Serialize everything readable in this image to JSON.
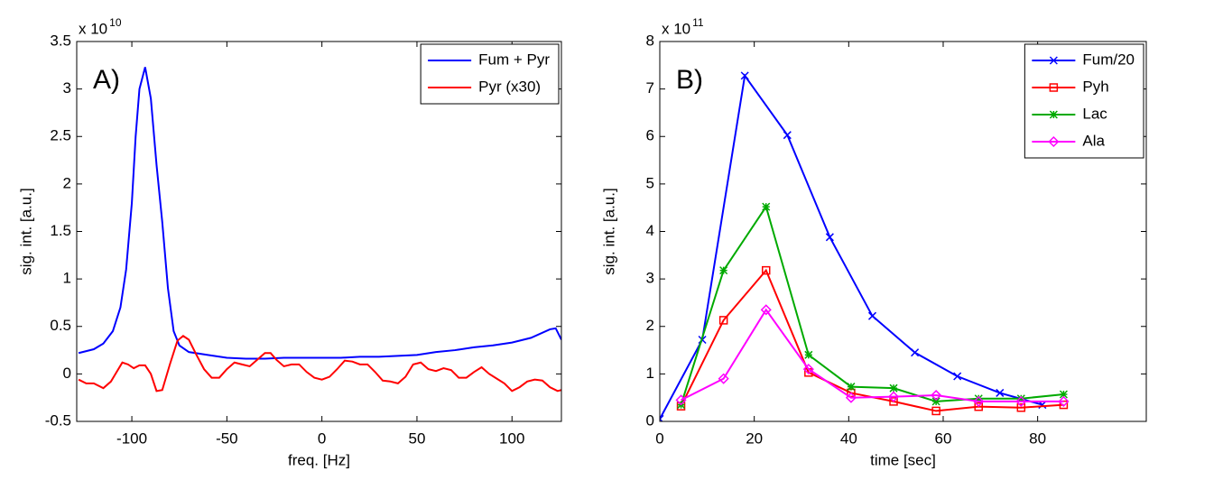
{
  "chart_data": [
    {
      "type": "line",
      "panel_label": "A)",
      "x_label": "freq. [Hz]",
      "y_label": "sig. int. [a.u.]",
      "y_scale_label": "x 10",
      "y_scale_exponent": "10",
      "xlim": [
        -129,
        126
      ],
      "ylim": [
        -0.5,
        3.5
      ],
      "xticks": [
        -100,
        -50,
        0,
        50,
        100
      ],
      "yticks": [
        -0.5,
        0,
        0.5,
        1,
        1.5,
        2,
        2.5,
        3,
        3.5
      ],
      "legend": "upper right",
      "series": [
        {
          "name": "Fum + Pyr",
          "color": "#0000ff",
          "x": [
            -128,
            -120,
            -115,
            -110,
            -106,
            -103,
            -100,
            -98,
            -96,
            -93,
            -90,
            -87,
            -84,
            -81,
            -78,
            -75,
            -70,
            -60,
            -50,
            -40,
            -30,
            -20,
            -10,
            0,
            10,
            20,
            30,
            40,
            50,
            60,
            70,
            80,
            90,
            100,
            110,
            120,
            123,
            126
          ],
          "values": [
            0.22,
            0.26,
            0.32,
            0.45,
            0.7,
            1.1,
            1.8,
            2.5,
            3.0,
            3.23,
            2.9,
            2.2,
            1.6,
            0.9,
            0.45,
            0.3,
            0.23,
            0.2,
            0.17,
            0.16,
            0.16,
            0.17,
            0.17,
            0.17,
            0.17,
            0.18,
            0.18,
            0.19,
            0.2,
            0.23,
            0.25,
            0.28,
            0.3,
            0.33,
            0.38,
            0.47,
            0.48,
            0.36
          ]
        },
        {
          "name": "Pyr (x30)",
          "color": "#ff0000",
          "x": [
            -128,
            -124,
            -120,
            -115,
            -111,
            -105,
            -102,
            -99,
            -96,
            -93,
            -90,
            -87,
            -84,
            -80,
            -76,
            -73,
            -70,
            -66,
            -62,
            -58,
            -54,
            -50,
            -46,
            -42,
            -38,
            -34,
            -30,
            -27,
            -24,
            -20,
            -16,
            -12,
            -8,
            -4,
            0,
            4,
            8,
            12,
            16,
            20,
            24,
            28,
            32,
            36,
            40,
            44,
            48,
            52,
            56,
            60,
            64,
            68,
            72,
            76,
            80,
            84,
            88,
            92,
            96,
            100,
            104,
            108,
            112,
            116,
            120,
            124,
            126
          ],
          "values": [
            -0.06,
            -0.1,
            -0.1,
            -0.15,
            -0.08,
            0.12,
            0.1,
            0.06,
            0.09,
            0.09,
            0.0,
            -0.18,
            -0.17,
            0.1,
            0.35,
            0.4,
            0.36,
            0.2,
            0.05,
            -0.04,
            -0.04,
            0.05,
            0.12,
            0.1,
            0.08,
            0.15,
            0.22,
            0.22,
            0.15,
            0.08,
            0.1,
            0.1,
            0.02,
            -0.04,
            -0.06,
            -0.03,
            0.05,
            0.14,
            0.13,
            0.1,
            0.1,
            0.02,
            -0.07,
            -0.08,
            -0.1,
            -0.03,
            0.1,
            0.12,
            0.05,
            0.03,
            0.06,
            0.04,
            -0.04,
            -0.04,
            0.02,
            0.07,
            0.0,
            -0.05,
            -0.1,
            -0.18,
            -0.14,
            -0.08,
            -0.06,
            -0.07,
            -0.14,
            -0.18,
            -0.17
          ]
        }
      ]
    },
    {
      "type": "line",
      "panel_label": "B)",
      "x_label": "time [sec]",
      "y_label": "sig. int. [a.u.]",
      "y_scale_label": "x 10",
      "y_scale_exponent": "11",
      "xlim": [
        0,
        103
      ],
      "ylim": [
        0,
        8
      ],
      "xticks": [
        0,
        20,
        40,
        60,
        80
      ],
      "yticks": [
        0,
        1,
        2,
        3,
        4,
        5,
        6,
        7,
        8
      ],
      "legend": "upper right",
      "series": [
        {
          "name": "Fum/20",
          "color": "#0000ff",
          "marker": "x",
          "x": [
            0,
            9,
            18,
            27,
            36,
            45,
            54,
            63,
            72,
            81
          ],
          "values": [
            0.05,
            1.72,
            7.28,
            6.03,
            3.88,
            2.22,
            1.45,
            0.95,
            0.6,
            0.35
          ]
        },
        {
          "name": "Pyh",
          "color": "#ff0000",
          "marker": "square",
          "x": [
            4.5,
            13.5,
            22.5,
            31.5,
            40.5,
            49.5,
            58.5,
            67.5,
            76.5,
            85.5
          ],
          "values": [
            0.32,
            2.13,
            3.18,
            1.03,
            0.6,
            0.42,
            0.22,
            0.31,
            0.29,
            0.35
          ]
        },
        {
          "name": "Lac",
          "color": "#00aa00",
          "marker": "asterisk",
          "x": [
            4.5,
            13.5,
            22.5,
            31.5,
            40.5,
            49.5,
            58.5,
            67.5,
            76.5,
            85.5
          ],
          "values": [
            0.35,
            3.18,
            4.52,
            1.4,
            0.73,
            0.7,
            0.42,
            0.48,
            0.48,
            0.57
          ]
        },
        {
          "name": "Ala",
          "color": "#ff00ff",
          "marker": "diamond",
          "x": [
            4.5,
            13.5,
            22.5,
            31.5,
            40.5,
            49.5,
            58.5,
            67.5,
            76.5,
            85.5
          ],
          "values": [
            0.45,
            0.9,
            2.35,
            1.1,
            0.5,
            0.52,
            0.55,
            0.42,
            0.42,
            0.42
          ]
        }
      ]
    }
  ]
}
